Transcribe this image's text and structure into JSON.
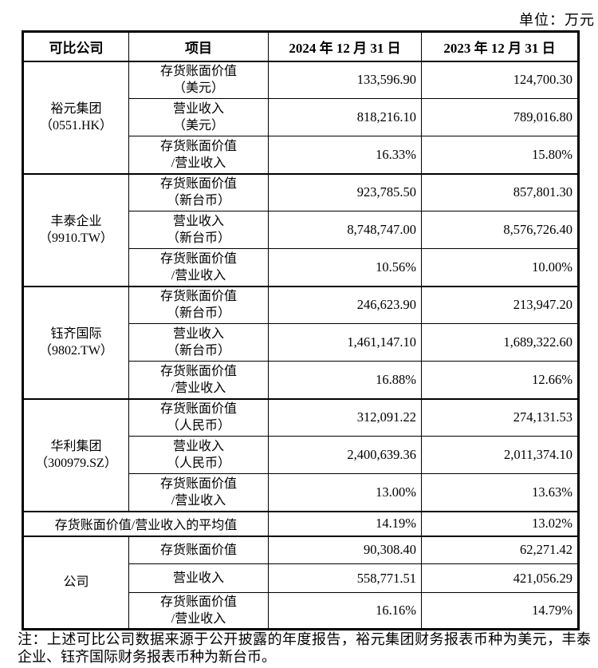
{
  "unit_label": "单位：万元",
  "table": {
    "headers": [
      "可比公司",
      "项目",
      "2024 年 12 月 31 日",
      "2023 年 12 月 31 日"
    ],
    "groups": [
      {
        "company": "裕元集团\n（0551.HK）",
        "rows": [
          {
            "item": "存货账面价值\n（美元）",
            "v2024": "133,596.90",
            "v2023": "124,700.30"
          },
          {
            "item": "营业收入\n（美元）",
            "v2024": "818,216.10",
            "v2023": "789,016.80"
          },
          {
            "item": "存货账面价值\n/营业收入",
            "v2024": "16.33%",
            "v2023": "15.80%"
          }
        ]
      },
      {
        "company": "丰泰企业\n（9910.TW）",
        "rows": [
          {
            "item": "存货账面价值\n（新台币）",
            "v2024": "923,785.50",
            "v2023": "857,801.30"
          },
          {
            "item": "营业收入\n（新台币）",
            "v2024": "8,748,747.00",
            "v2023": "8,576,726.40"
          },
          {
            "item": "存货账面价值\n/营业收入",
            "v2024": "10.56%",
            "v2023": "10.00%"
          }
        ]
      },
      {
        "company": "钰齐国际\n（9802.TW）",
        "rows": [
          {
            "item": "存货账面价值\n（新台币）",
            "v2024": "246,623.90",
            "v2023": "213,947.20"
          },
          {
            "item": "营业收入\n（新台币）",
            "v2024": "1,461,147.10",
            "v2023": "1,689,322.60"
          },
          {
            "item": "存货账面价值\n/营业收入",
            "v2024": "16.88%",
            "v2023": "12.66%"
          }
        ]
      },
      {
        "company": "华利集团\n（300979.SZ）",
        "rows": [
          {
            "item": "存货账面价值\n（人民币）",
            "v2024": "312,091.22",
            "v2023": "274,131.53"
          },
          {
            "item": "营业收入\n（人民币）",
            "v2024": "2,400,639.36",
            "v2023": "2,011,374.10"
          },
          {
            "item": "存货账面价值\n/营业收入",
            "v2024": "13.00%",
            "v2023": "13.63%"
          }
        ]
      }
    ],
    "average_row": {
      "label": "存货账面价值/营业收入的平均值",
      "v2024": "14.19%",
      "v2023": "13.02%"
    },
    "company_group": {
      "company": "公司",
      "rows": [
        {
          "item": "存货账面价值",
          "v2024": "90,308.40",
          "v2023": "62,271.42"
        },
        {
          "item": "营业收入",
          "v2024": "558,771.51",
          "v2023": "421,056.29"
        },
        {
          "item": "存货账面价值\n/营业收入",
          "v2024": "16.16%",
          "v2023": "14.79%"
        }
      ]
    }
  },
  "note": "注：上述可比公司数据来源于公开披露的年度报告，裕元集团财务报表币种为美元，丰泰企业、钰齐国际财务报表币种为新台币。"
}
